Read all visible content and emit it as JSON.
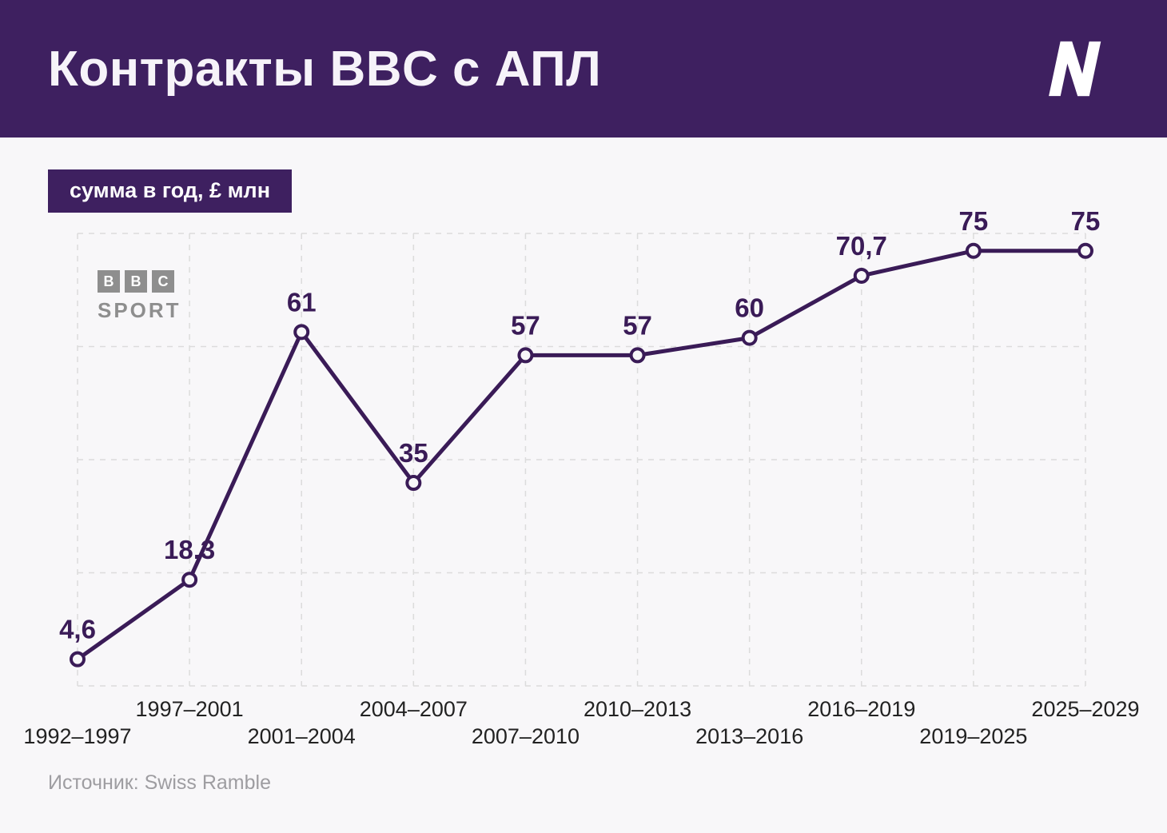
{
  "header": {
    "title": "Контракты BBC с АПЛ"
  },
  "badge": {
    "label": "сумма в год, £ млн"
  },
  "watermark": {
    "letters": [
      "B",
      "B",
      "C"
    ],
    "word": "SPORT"
  },
  "source": {
    "label": "Источник: Swiss Ramble"
  },
  "colors": {
    "header_background": "#3e2060",
    "line": "#3a1b57",
    "grid": "#dcdcdc",
    "axis_text": "#222222",
    "background": "#f8f7f9",
    "muted_text": "#9e9da1",
    "watermark_gray": "#8e8e8e"
  },
  "chart_data": {
    "type": "line",
    "title": "Контракты BBC с АПЛ",
    "subtitle": "сумма в год, £ млн",
    "xlabel": "",
    "ylabel": "сумма в год, £ млн",
    "categories": [
      "1992–1997",
      "1997–2001",
      "2001–2004",
      "2004–2007",
      "2007–2010",
      "2010–2013",
      "2013–2016",
      "2016–2019",
      "2019–2025",
      "2025–2029"
    ],
    "values": [
      4.6,
      18.3,
      61,
      35,
      57,
      57,
      60,
      70.7,
      75,
      75
    ],
    "value_labels": [
      "4,6",
      "18,3",
      "61",
      "35",
      "57",
      "57",
      "60",
      "70,7",
      "75",
      "75"
    ],
    "ylim": [
      0,
      78
    ],
    "grid": true,
    "grid_style": "dashed",
    "legend": false,
    "marker": "open-circle",
    "x_labels_staggered": true
  }
}
